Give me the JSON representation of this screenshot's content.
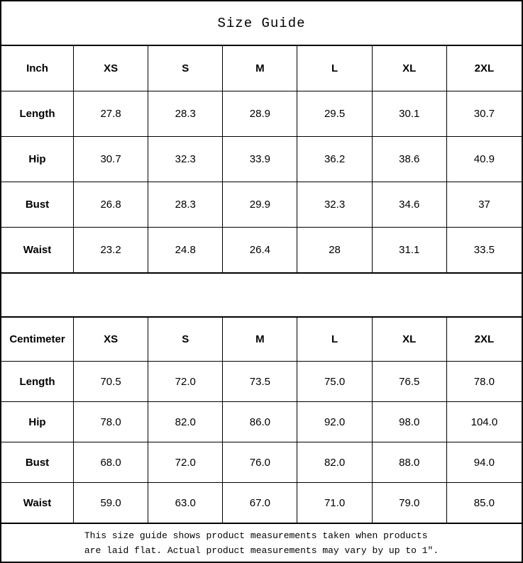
{
  "title": "Size Guide",
  "tables": [
    {
      "unit_label": "Inch",
      "sizes": [
        "XS",
        "S",
        "M",
        "L",
        "XL",
        "2XL"
      ],
      "rows": [
        {
          "label": "Length",
          "values": [
            "27.8",
            "28.3",
            "28.9",
            "29.5",
            "30.1",
            "30.7"
          ]
        },
        {
          "label": "Hip",
          "values": [
            "30.7",
            "32.3",
            "33.9",
            "36.2",
            "38.6",
            "40.9"
          ]
        },
        {
          "label": "Bust",
          "values": [
            "26.8",
            "28.3",
            "29.9",
            "32.3",
            "34.6",
            "37"
          ]
        },
        {
          "label": "Waist",
          "values": [
            "23.2",
            "24.8",
            "26.4",
            "28",
            "31.1",
            "33.5"
          ]
        }
      ]
    },
    {
      "unit_label": "Centimeter",
      "sizes": [
        "XS",
        "S",
        "M",
        "L",
        "XL",
        "2XL"
      ],
      "rows": [
        {
          "label": "Length",
          "values": [
            "70.5",
            "72.0",
            "73.5",
            "75.0",
            "76.5",
            "78.0"
          ]
        },
        {
          "label": "Hip",
          "values": [
            "78.0",
            "82.0",
            "86.0",
            "92.0",
            "98.0",
            "104.0"
          ]
        },
        {
          "label": "Bust",
          "values": [
            "68.0",
            "72.0",
            "76.0",
            "82.0",
            "88.0",
            "94.0"
          ]
        },
        {
          "label": "Waist",
          "values": [
            "59.0",
            "63.0",
            "67.0",
            "71.0",
            "79.0",
            "85.0"
          ]
        }
      ]
    }
  ],
  "footer": {
    "line1": "This size guide shows product measurements taken when products",
    "line2": "are laid flat. Actual product measurements may vary by up to 1″."
  },
  "colors": {
    "border": "#000000",
    "background": "#ffffff",
    "text": "#000000"
  }
}
